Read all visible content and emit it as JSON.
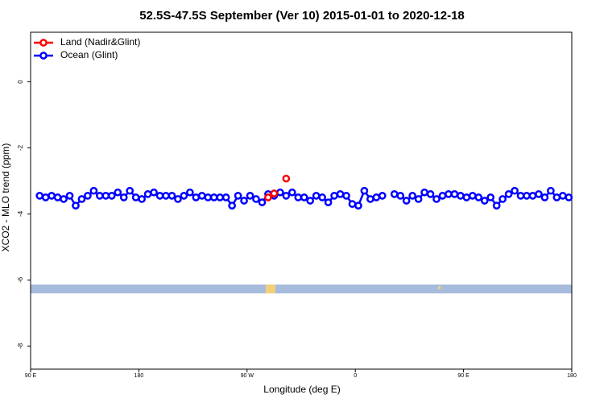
{
  "chart_data": {
    "type": "line",
    "title": "52.5S-47.5S September (Ver 10)   2015-01-01 to 2020-12-18",
    "x_label": "Longitude (deg E)",
    "y_label": "XCO2 - MLO trend (ppm)",
    "xlim": [
      90,
      540
    ],
    "xticks": [
      {
        "value": 90,
        "label": "90 E"
      },
      180,
      {
        "value": 270,
        "label": "90 W"
      },
      {
        "value": 360,
        "label": "0"
      },
      {
        "value": 450,
        "label": "90 E"
      },
      {
        "value": 540,
        "label": "180"
      }
    ],
    "ylim": [
      -8.7,
      1.5
    ],
    "yticks": [
      0,
      -2,
      -4,
      -6,
      -8
    ],
    "legend": "upper left",
    "series": [
      {
        "name": "Land (Nadir&Glint)",
        "color": "#ff0000",
        "x": [
          287.5,
          292.5,
          297.5,
          302.5
        ],
        "values": [
          -3.5,
          -3.38,
          null,
          -2.93
        ]
      },
      {
        "name": "Ocean (Glint)",
        "color": "#0000ff",
        "x": [
          97.5,
          102.5,
          107.5,
          112.5,
          117.5,
          122.5,
          127.5,
          132.5,
          137.5,
          142.5,
          147.5,
          152.5,
          157.5,
          162.5,
          167.5,
          172.5,
          177.5,
          182.5,
          187.5,
          192.5,
          197.5,
          202.5,
          207.5,
          212.5,
          217.5,
          222.5,
          227.5,
          232.5,
          237.5,
          242.5,
          247.5,
          252.5,
          257.5,
          262.5,
          267.5,
          272.5,
          277.5,
          282.5,
          287.5,
          292.5,
          297.5,
          302.5,
          307.5,
          312.5,
          317.5,
          322.5,
          327.5,
          332.5,
          337.5,
          342.5,
          347.5,
          352.5,
          357.5,
          362.5,
          367.5,
          372.5,
          377.5,
          382.5,
          387.5,
          392.5,
          397.5,
          402.5,
          407.5,
          412.5,
          417.5,
          422.5,
          427.5,
          432.5,
          437.5,
          442.5,
          447.5,
          452.5,
          457.5,
          462.5,
          467.5,
          472.5,
          477.5,
          482.5,
          487.5,
          492.5,
          497.5,
          502.5,
          507.5,
          512.5,
          517.5,
          522.5,
          527.5,
          532.5,
          537.5
        ],
        "values": [
          -3.45,
          -3.5,
          -3.45,
          -3.5,
          -3.55,
          -3.45,
          -3.75,
          -3.55,
          -3.45,
          -3.3,
          -3.45,
          -3.45,
          -3.45,
          -3.35,
          -3.5,
          -3.3,
          -3.5,
          -3.55,
          -3.4,
          -3.35,
          -3.45,
          -3.45,
          -3.45,
          -3.55,
          -3.45,
          -3.35,
          -3.5,
          -3.45,
          -3.5,
          -3.5,
          -3.5,
          -3.5,
          -3.75,
          -3.45,
          -3.6,
          -3.45,
          -3.55,
          -3.65,
          -3.4,
          -3.45,
          -3.35,
          -3.45,
          -3.35,
          -3.5,
          -3.5,
          -3.6,
          -3.45,
          -3.5,
          -3.65,
          -3.45,
          -3.4,
          -3.45,
          -3.7,
          -3.75,
          -3.3,
          -3.55,
          -3.5,
          -3.45,
          null,
          -3.4,
          -3.45,
          -3.6,
          -3.45,
          -3.55,
          -3.35,
          -3.4,
          -3.55,
          -3.45,
          -3.4,
          -3.4,
          -3.45,
          -3.5,
          -3.45,
          -3.5,
          -3.6,
          -3.5,
          -3.75,
          -3.55,
          -3.4,
          -3.3,
          -3.45,
          -3.45,
          -3.45,
          -3.4,
          -3.5,
          -3.3,
          -3.5,
          -3.45,
          -3.5
        ]
      }
    ]
  }
}
